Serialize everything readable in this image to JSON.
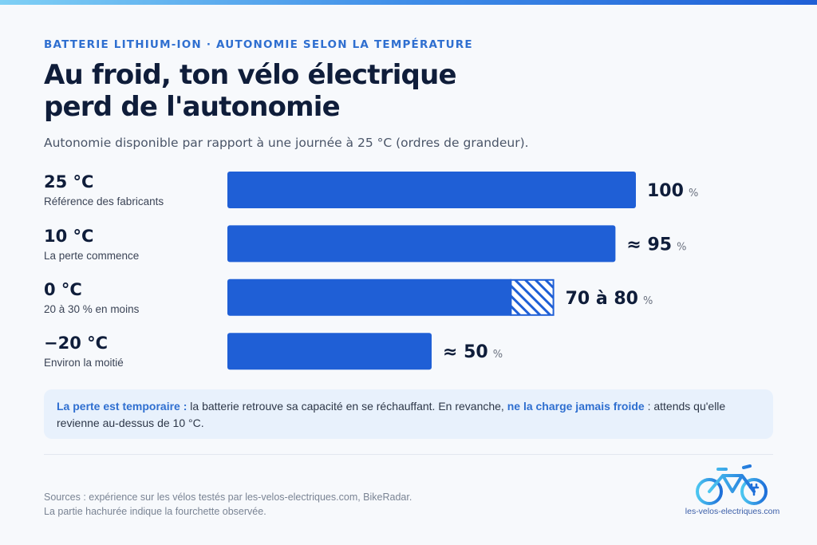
{
  "header": {
    "eyebrow": "BATTERIE LITHIUM-ION · AUTONOMIE SELON LA TEMPÉRATURE",
    "title_line1": "Au froid, ton vélo électrique",
    "title_line2": "perd de l'autonomie",
    "subtitle": "Autonomie disponible par rapport à une journée à 25 °C (ordres de grandeur)."
  },
  "rows": [
    {
      "temp": "25 °C",
      "note": "Référence des fabricants"
    },
    {
      "temp": "10 °C",
      "note": "La perte commence"
    },
    {
      "temp": "0 °C",
      "note": "20 à 30 % en moins"
    },
    {
      "temp": "−20 °C",
      "note": "Environ la moitié"
    }
  ],
  "chart_data": {
    "type": "bar",
    "orientation": "horizontal",
    "categories": [
      "25 °C",
      "10 °C",
      "0 °C",
      "−20 °C"
    ],
    "values": [
      100,
      95,
      80,
      50
    ],
    "range_low": [
      100,
      95,
      70,
      50
    ],
    "value_labels": [
      {
        "prefix": "",
        "value": "100",
        "unit": "%"
      },
      {
        "prefix": "≈ ",
        "value": "95",
        "unit": "%"
      },
      {
        "prefix": "",
        "value": "70 à 80",
        "unit": "%"
      },
      {
        "prefix": "≈ ",
        "value": "50",
        "unit": "%"
      }
    ],
    "xlim": [
      0,
      100
    ],
    "grid": false,
    "colors": {
      "bar": "#1f5fd6",
      "hatch_bg": "#ffffff",
      "label": "#0f1d3a",
      "unit": "#6b7280"
    }
  },
  "callout": {
    "lead": "La perte est temporaire :",
    "text1": " la batterie retrouve sa capacité en se réchauffant. En revanche, ",
    "emphasis": "ne la charge jamais froide",
    "text2": " : attends qu'elle revienne au-dessus de 10 °C."
  },
  "footer": {
    "sources": "Sources : expérience sur les vélos testés par les-velos-electriques.com, BikeRadar.",
    "note": "La partie hachurée indique la fourchette observée.",
    "logo_text": "les-velos-electriques.com"
  },
  "colors": {
    "accent": "#2f6fd0",
    "bar": "#1f5fd6",
    "callout_bg": "#e8f1fc"
  }
}
